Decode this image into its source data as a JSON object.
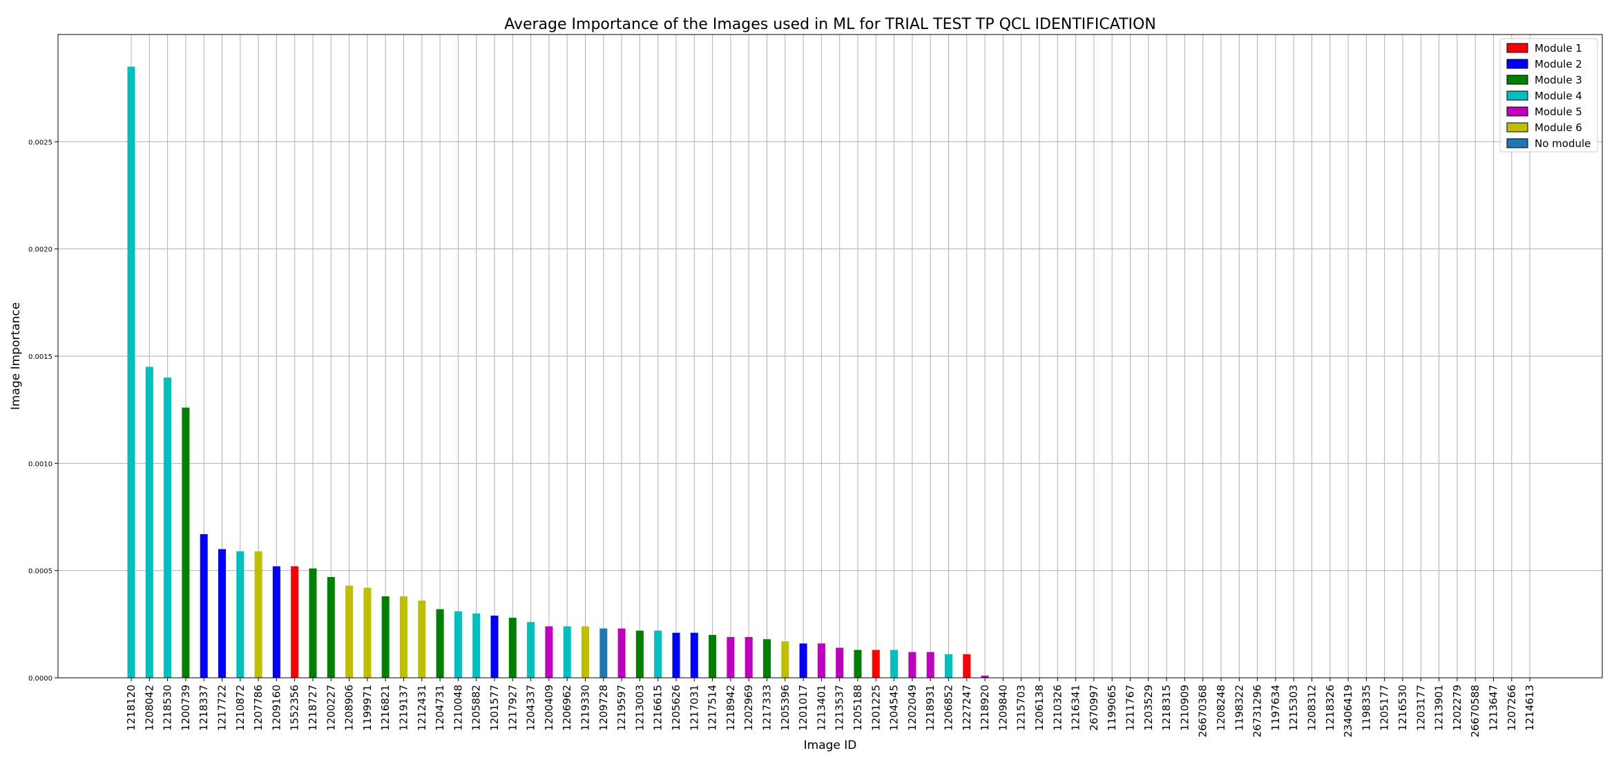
{
  "chart_data": {
    "type": "bar",
    "title": "Average Importance of the Images used in ML for TRIAL TEST TP QCL IDENTIFICATION",
    "xlabel": "Image ID",
    "ylabel": "Image Importance",
    "ylim": [
      0,
      0.003
    ],
    "yticks": [
      "0.0000",
      "0.0005",
      "0.0010",
      "0.0015",
      "0.0020",
      "0.0025"
    ],
    "grid": true,
    "legend_position": "top-right",
    "legend": [
      {
        "name": "Module 1",
        "color": "#ff0000"
      },
      {
        "name": "Module 2",
        "color": "#0000ff"
      },
      {
        "name": "Module 3",
        "color": "#008000"
      },
      {
        "name": "Module 4",
        "color": "#00bfbf"
      },
      {
        "name": "Module 5",
        "color": "#bf00bf"
      },
      {
        "name": "Module 6",
        "color": "#bfbf00"
      },
      {
        "name": "No module",
        "color": "#1f77b4"
      }
    ],
    "categories": [
      "1218120",
      "1208042",
      "1218530",
      "1200739",
      "1218337",
      "1217722",
      "1210872",
      "1207786",
      "1209160",
      "1552356",
      "1218727",
      "1200227",
      "1208906",
      "1199971",
      "1216821",
      "1219137",
      "1212431",
      "1204731",
      "1210048",
      "1205882",
      "1201577",
      "1217927",
      "1204337",
      "1200409",
      "1206962",
      "1219330",
      "1209728",
      "1219597",
      "1213003",
      "1216615",
      "1205626",
      "1217031",
      "1217514",
      "1218942",
      "1202969",
      "1217333",
      "1205396",
      "1201017",
      "1213401",
      "1213537",
      "1205188",
      "1201225",
      "1204545",
      "1202049",
      "1218931",
      "1206852",
      "1227247",
      "1218920",
      "1209840",
      "1215703",
      "1206138",
      "1210326",
      "1216341",
      "2670997",
      "1199065",
      "1211767",
      "1203529",
      "1218315",
      "1210909",
      "26670368",
      "1208248",
      "1198322",
      "26731296",
      "1197634",
      "1215303",
      "1208312",
      "1218326",
      "23406419",
      "1198335",
      "1205177",
      "1216530",
      "1203177",
      "1213901",
      "1202279",
      "26670588",
      "1213647",
      "1207266",
      "1214613"
    ],
    "values": [
      0.00285,
      0.00145,
      0.0014,
      0.00126,
      0.00067,
      0.0006,
      0.00059,
      0.00059,
      0.00052,
      0.00052,
      0.00051,
      0.00047,
      0.00043,
      0.00042,
      0.00038,
      0.00038,
      0.00036,
      0.00032,
      0.00031,
      0.0003,
      0.00029,
      0.00028,
      0.00026,
      0.00024,
      0.00024,
      0.00024,
      0.00023,
      0.00023,
      0.00022,
      0.00022,
      0.00021,
      0.00021,
      0.0002,
      0.00019,
      0.00019,
      0.00018,
      0.00017,
      0.00016,
      0.00016,
      0.00014,
      0.00013,
      0.00013,
      0.00013,
      0.00012,
      0.00012,
      0.00011,
      0.00011,
      1e-05,
      0,
      0,
      0,
      0,
      0,
      0,
      0,
      0,
      0,
      0,
      0,
      0,
      0,
      0,
      0,
      0,
      0,
      0,
      0,
      0,
      0,
      0,
      0,
      0,
      0,
      0,
      0,
      0,
      0,
      0
    ],
    "modules": [
      "Module 4",
      "Module 4",
      "Module 4",
      "Module 3",
      "Module 2",
      "Module 2",
      "Module 4",
      "Module 6",
      "Module 2",
      "Module 1",
      "Module 3",
      "Module 3",
      "Module 6",
      "Module 6",
      "Module 3",
      "Module 6",
      "Module 6",
      "Module 3",
      "Module 4",
      "Module 4",
      "Module 2",
      "Module 3",
      "Module 4",
      "Module 5",
      "Module 4",
      "Module 6",
      "No module",
      "Module 5",
      "Module 3",
      "Module 4",
      "Module 2",
      "Module 2",
      "Module 3",
      "Module 5",
      "Module 5",
      "Module 3",
      "Module 6",
      "Module 2",
      "Module 5",
      "Module 5",
      "Module 3",
      "Module 1",
      "Module 4",
      "Module 5",
      "Module 5",
      "Module 4",
      "Module 1",
      "Module 5",
      "Module 5",
      "Module 5",
      "Module 5",
      "Module 5",
      "Module 5",
      "Module 5",
      "Module 5",
      "Module 5",
      "Module 5",
      "Module 5",
      "Module 5",
      "Module 5",
      "Module 5",
      "Module 5",
      "Module 5",
      "Module 5",
      "Module 5",
      "Module 5",
      "Module 5",
      "Module 5",
      "Module 5",
      "Module 5",
      "Module 5",
      "Module 5",
      "Module 5",
      "Module 5",
      "Module 5",
      "Module 5",
      "Module 5",
      "Module 5"
    ]
  }
}
